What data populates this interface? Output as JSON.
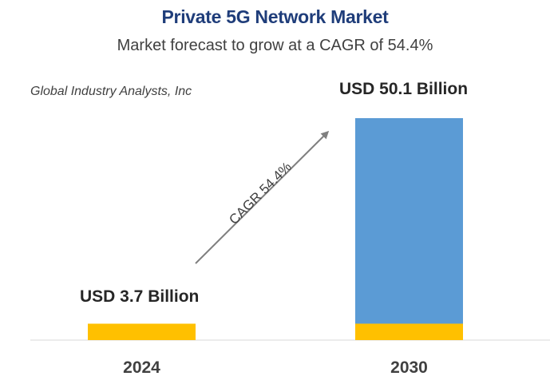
{
  "title": "Private 5G Network Market",
  "subtitle": "Market forecast to grow at a CAGR of 54.4%",
  "source": "Global Industry Analysts, Inc",
  "cagr_label": "CAGR 54.4%",
  "colors": {
    "title": "#1f3d7a",
    "bar_base": "#ffc000",
    "bar_growth": "#5b9bd5",
    "arrow": "#7f7f7f"
  },
  "chart_data": {
    "type": "bar",
    "title": "Private 5G Network Market",
    "subtitle": "Market forecast to grow at a CAGR of 54.4%",
    "categories": [
      "2024",
      "2030"
    ],
    "values": [
      3.7,
      50.1
    ],
    "unit": "USD Billion",
    "data_labels": [
      "USD 3.7 Billion",
      "USD 50.1 Billion"
    ],
    "annotation": "CAGR 54.4%",
    "xlabel": "",
    "ylabel": "",
    "ylim": [
      0,
      50.1
    ],
    "grid": false,
    "legend": "none"
  }
}
